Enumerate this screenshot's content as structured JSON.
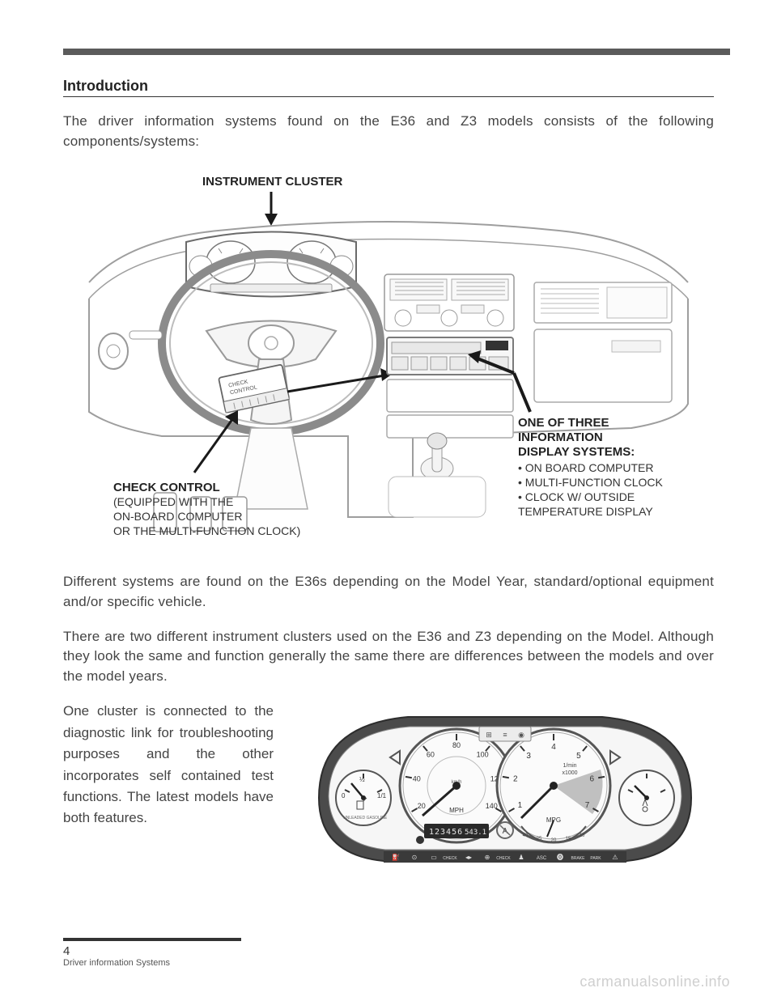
{
  "heading": "Introduction",
  "intro_paragraph": "The driver information systems found on the E36 and Z3 models consists of the following components/systems:",
  "diagram": {
    "label_instrument_cluster": "INSTRUMENT CLUSTER",
    "label_check_control_title": "CHECK CONTROL",
    "label_check_control_lines": [
      "(EQUIPPED WITH THE",
      "ON-BOARD COMPUTER",
      "OR THE MULTI-FUNCTION CLOCK)"
    ],
    "label_info_title_lines": [
      "ONE OF THREE",
      "INFORMATION",
      "DISPLAY SYSTEMS:"
    ],
    "label_info_bullets": [
      "ON BOARD COMPUTER",
      "MULTI-FUNCTION CLOCK",
      "CLOCK W/ OUTSIDE",
      "  TEMPERATURE DISPLAY"
    ],
    "colors": {
      "line": "#4a4a4a",
      "panel_fill": "#f3f3f3",
      "panel_stroke": "#9e9e9e",
      "dark": "#1a1a1a"
    }
  },
  "para2": "Different systems are found on the E36s depending on the Model Year, standard/optional equipment and/or specific vehicle.",
  "para3": "There are two different instrument clusters used on the E36 and Z3 depending on the Model.  Although they look the same and function generally the same there are differences between the models and over the model years.",
  "para4": "One cluster is connected to the diagnostic link for troubleshooting purposes and the other incorporates self contained test functions. The latest models have both features.",
  "cluster": {
    "speedo_labels": [
      "20",
      "40",
      "60",
      "80",
      "100",
      "120",
      "140"
    ],
    "speedo_unit": "MPH",
    "kmh_label": "km/h",
    "tach_labels": [
      "1",
      "2",
      "3",
      "4",
      "5",
      "6",
      "7"
    ],
    "tach_unit": "1/min",
    "tach_mult": "x1000",
    "mpg_label": "MPG",
    "mpg_scale": [
      "40",
      "25",
      "20",
      "15",
      "10"
    ],
    "odometer": "123456",
    "trip": "543.1",
    "fuel_label": "UNLEADED GASOLINE",
    "fuel_scale": [
      "0",
      "½",
      "1/1"
    ],
    "colors": {
      "bezel": "#4b4b4b",
      "face": "#fbfbfb",
      "tick": "#333333",
      "needle": "#222222",
      "lcd_bg": "#2a2a2a",
      "lcd_text": "#e6e6e6",
      "redzone": "#777777"
    }
  },
  "footer": {
    "page": "4",
    "title": "Driver information Systems"
  },
  "watermark": "carmanualsonline.info"
}
